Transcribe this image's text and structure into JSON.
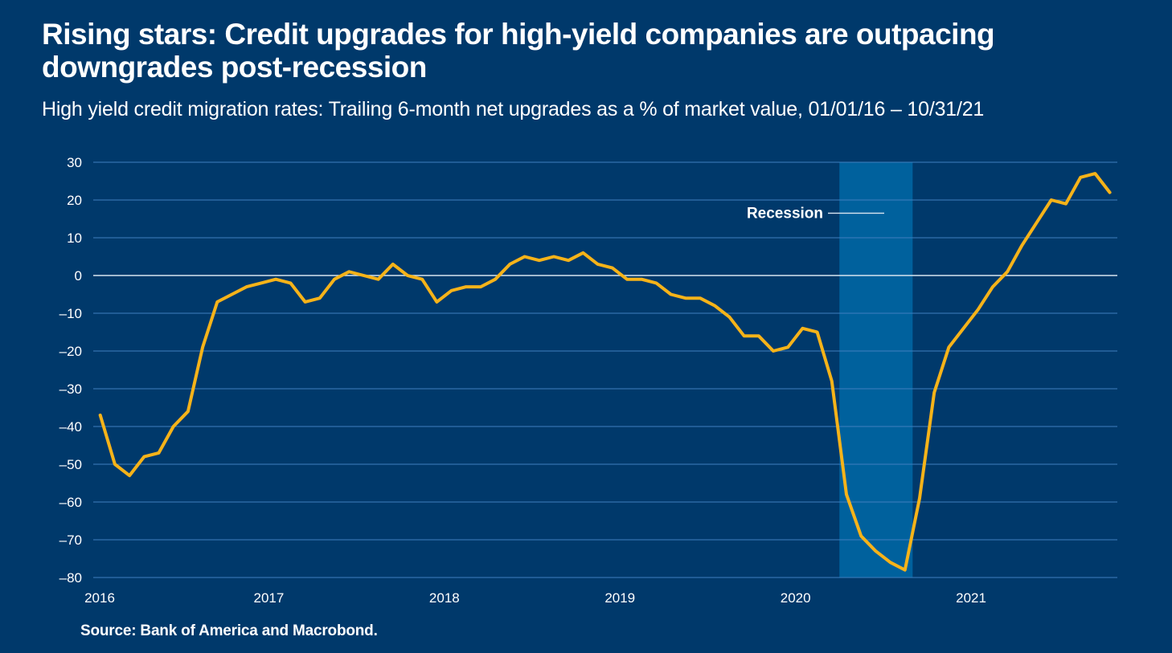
{
  "title": "Rising stars: Credit upgrades for high-yield companies are outpacing downgrades post-recession",
  "subtitle": "High yield credit migration rates: Trailing 6-month net upgrades as a % of market value, 01/01/16 – 10/31/21",
  "source": "Source: Bank of America and Macrobond.",
  "colors": {
    "background": "#00396b",
    "line": "#f6b319",
    "recession": "#00619d",
    "grid": "#3f80bf"
  },
  "chart_data": {
    "type": "line",
    "title": "Rising stars: Credit upgrades for high-yield companies are outpacing downgrades post-recession",
    "xlabel": "",
    "ylabel": "",
    "ylim": [
      -80,
      30
    ],
    "yticks": [
      30,
      20,
      10,
      0,
      -10,
      -20,
      -30,
      -40,
      -50,
      -60,
      -70,
      -80
    ],
    "ytick_labels": [
      "30",
      "20",
      "10",
      "0",
      "–10",
      "–20",
      "–30",
      "–40",
      "–50",
      "–60",
      "–70",
      "–80"
    ],
    "xlim": [
      2016.0,
      2021.833
    ],
    "xticks": [
      2016,
      2017,
      2018,
      2019,
      2020,
      2021
    ],
    "xtick_labels": [
      "2016",
      "2017",
      "2018",
      "2019",
      "2020",
      "2021"
    ],
    "grid": true,
    "recession": {
      "label": "Recession",
      "start": 2020.25,
      "end": 2020.667
    },
    "series": [
      {
        "name": "Trailing 6-month net upgrades (% of market value)",
        "values": [
          -37,
          -50,
          -53,
          -48,
          -47,
          -40,
          -36,
          -19,
          -7,
          -5,
          -3,
          -2,
          -1,
          -2,
          -7,
          -6,
          -1,
          1,
          0,
          -1,
          3,
          0,
          -1,
          -7,
          -4,
          -3,
          -3,
          -1,
          3,
          5,
          4,
          5,
          4,
          6,
          3,
          2,
          -1,
          -1,
          -2,
          -5,
          -6,
          -6,
          -8,
          -11,
          -16,
          -16,
          -20,
          -19,
          -14,
          -15,
          -28,
          -58,
          -69,
          -73,
          -76,
          -78,
          -59,
          -31,
          -19,
          -14,
          -9,
          -3,
          1,
          8,
          14,
          20,
          19,
          26,
          27,
          22
        ]
      }
    ]
  }
}
